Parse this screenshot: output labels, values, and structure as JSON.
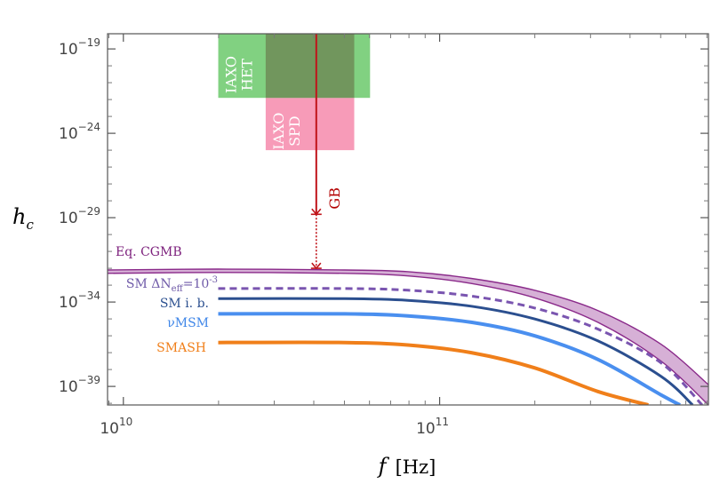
{
  "chart_data": {
    "type": "line",
    "xlabel": "f",
    "xunit": "[Hz]",
    "ylabel": "h",
    "ylabel_sub": "c",
    "xscale": "log",
    "yscale": "log",
    "xlim_log10": [
      9.95,
      11.85
    ],
    "ylim_log10": [
      -40.1,
      -18.1
    ],
    "x_ticks": [
      {
        "base": "10",
        "exp": "10",
        "log": 10
      },
      {
        "base": "10",
        "exp": "11",
        "log": 11
      }
    ],
    "y_ticks": [
      {
        "base": "10",
        "exp": "−19",
        "log": -19
      },
      {
        "base": "10",
        "exp": "−24",
        "log": -24
      },
      {
        "base": "10",
        "exp": "−29",
        "log": -29
      },
      {
        "base": "10",
        "exp": "−34",
        "log": -34
      },
      {
        "base": "10",
        "exp": "−39",
        "log": -39
      }
    ],
    "series": [
      {
        "name": "SMASH",
        "color": "#f07f1a",
        "width": 4,
        "dash": "",
        "start_log10": 10.3,
        "plateau_log10": -36.4,
        "points": [
          [
            10.3,
            -36.4
          ],
          [
            10.7,
            -36.4
          ],
          [
            10.9,
            -36.55
          ],
          [
            11.1,
            -37.0
          ],
          [
            11.3,
            -37.9
          ],
          [
            11.5,
            -39.3
          ],
          [
            11.66,
            -40.1
          ]
        ]
      },
      {
        "name": "νMSM",
        "color": "#4a8fef",
        "width": 4,
        "dash": "",
        "start_log10": 10.3,
        "plateau_log10": -34.7,
        "points": [
          [
            10.3,
            -34.7
          ],
          [
            10.7,
            -34.7
          ],
          [
            10.9,
            -34.82
          ],
          [
            11.1,
            -35.2
          ],
          [
            11.3,
            -36.0
          ],
          [
            11.5,
            -37.4
          ],
          [
            11.7,
            -39.5
          ],
          [
            11.76,
            -40.1
          ]
        ]
      },
      {
        "name": "SM i. b.",
        "color": "#2b4f8f",
        "width": 3,
        "dash": "",
        "start_log10": 10.3,
        "plateau_log10": -33.8,
        "points": [
          [
            10.3,
            -33.8
          ],
          [
            10.7,
            -33.8
          ],
          [
            10.9,
            -33.9
          ],
          [
            11.1,
            -34.25
          ],
          [
            11.3,
            -35.0
          ],
          [
            11.5,
            -36.3
          ],
          [
            11.7,
            -38.4
          ],
          [
            11.8,
            -40.1
          ]
        ]
      },
      {
        "name": "SM ΔNeff=10",
        "exp": "-3",
        "color": "#7a55b0",
        "width": 3,
        "dash": "8 5",
        "start_log10": 10.3,
        "plateau_log10": -33.2,
        "points": [
          [
            10.3,
            -33.2
          ],
          [
            10.7,
            -33.2
          ],
          [
            10.9,
            -33.3
          ],
          [
            11.1,
            -33.65
          ],
          [
            11.3,
            -34.35
          ],
          [
            11.5,
            -35.6
          ],
          [
            11.7,
            -37.6
          ],
          [
            11.83,
            -40.1
          ]
        ]
      }
    ],
    "band": {
      "name": "Eq. CGMB",
      "color": "#8a2a8a",
      "fill": "#cfa2cf",
      "upper": [
        [
          9.95,
          -32.1
        ],
        [
          10.3,
          -32.05
        ],
        [
          10.7,
          -32.1
        ],
        [
          10.9,
          -32.2
        ],
        [
          11.1,
          -32.6
        ],
        [
          11.3,
          -33.3
        ],
        [
          11.5,
          -34.5
        ],
        [
          11.7,
          -36.5
        ],
        [
          11.85,
          -38.9
        ]
      ],
      "lower": [
        [
          9.95,
          -32.3
        ],
        [
          10.3,
          -32.25
        ],
        [
          10.7,
          -32.3
        ],
        [
          10.9,
          -32.45
        ],
        [
          11.1,
          -32.9
        ],
        [
          11.3,
          -33.75
        ],
        [
          11.5,
          -35.2
        ],
        [
          11.7,
          -37.5
        ],
        [
          11.85,
          -40.1
        ]
      ]
    },
    "regions": [
      {
        "name": "IAXO HET",
        "line1": "IAXO",
        "line2": "HET",
        "color": "#5ec45e",
        "opacity": 0.78,
        "x_log10": [
          10.3,
          10.78
        ],
        "y_log10": [
          -18.1,
          -21.9
        ]
      },
      {
        "name": "IAXO SPD",
        "line1": "IAXO",
        "line2": "SPD",
        "color": "#f57fa4",
        "opacity": 0.78,
        "x_log10": [
          10.45,
          10.73
        ],
        "y_log10": [
          -21.9,
          -25.0
        ]
      }
    ],
    "overlap_color": "#6f8c57",
    "gb": {
      "label": "GB",
      "color": "#c0141a",
      "x_log10": 10.61,
      "top_log10": -18.1,
      "solid_end_log10": -28.8,
      "dotted_end_log10": -32.0
    },
    "annotations": [
      {
        "text": "Eq. CGMB",
        "color": "#7b1e7b"
      },
      {
        "text": "SM ΔN",
        "sub": "eff",
        "tail": "=10",
        "sup": "-3",
        "color": "#6f5aa8"
      },
      {
        "text": "SM i. b.",
        "color": "#2b4f8f"
      },
      {
        "text": "νMSM",
        "color": "#3f86e8"
      },
      {
        "text": "SMASH",
        "color": "#f07f1a"
      }
    ]
  }
}
